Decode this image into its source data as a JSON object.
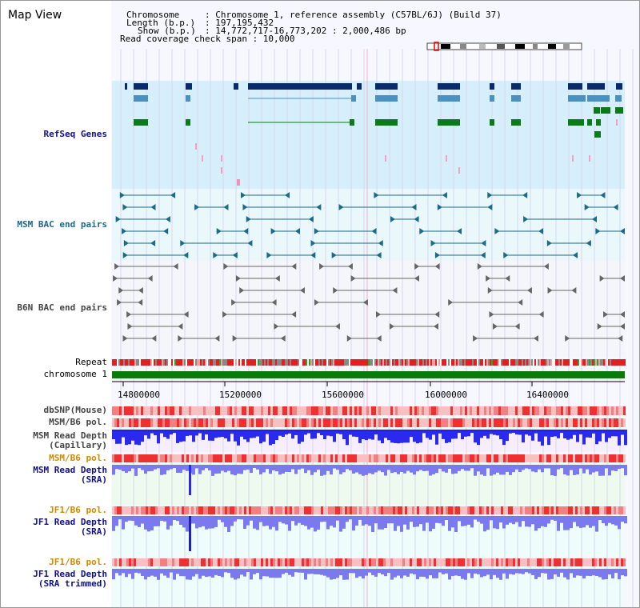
{
  "view_title": "Map View",
  "info": {
    "chromosome_key": "Chromosome",
    "chromosome_value": ": Chromosome 1, reference assembly (C57BL/6J) (Build 37)",
    "length_key": "Length (b.p.)",
    "length_value": ": 197,195,432",
    "show_key": "Show (b.p.)",
    "show_value": ": 14,772,717-16,773,202 : 2,000,486 bp",
    "coverage_label": "Read coverage check span : 10,000"
  },
  "tracks": {
    "refseq": "RefSeq Genes",
    "msm_bac": "MSM BAC end pairs",
    "b6n_bac": "B6N BAC end pairs",
    "repeat": "Repeat",
    "chromosome": "chromosome 1",
    "dbsnp": "dbSNP(Mouse)",
    "msm_b6_pol": "MSM/B6 pol.",
    "msm_read_depth_cap_1": "MSM Read Depth",
    "msm_read_depth_cap_2": "(Capillary)",
    "msm_b6_pol_2": "MSM/B6 pol.",
    "msm_read_depth_sra_1": "MSM Read Depth",
    "msm_read_depth_sra_2": "(SRA)",
    "jf1_b6_pol": "JF1/B6 pol.",
    "jf1_read_depth_sra_1": "JF1 Read Depth",
    "jf1_read_depth_sra_2": "(SRA)",
    "jf1_b6_pol_2": "JF1/B6 pol.",
    "jf1_read_depth_trim_1": "JF1 Read Depth",
    "jf1_read_depth_trim_2": "(SRA trimmed)"
  },
  "axis": {
    "ticks": [
      "14800000",
      "15200000",
      "15600000",
      "16000000",
      "16400000"
    ]
  },
  "colors": {
    "refseq_bg": "#d6effb",
    "gene_dark": "#0a2a6a",
    "gene_mid": "#4a90c0",
    "gene_green": "#0a7a1a",
    "msm_bac": "#1a6a8a",
    "b6n_bac": "#666666",
    "chromosome": "#0a7a0a",
    "depth_blue": "#2a2aee",
    "depth_light": "#7a7aee",
    "pol_red": "#ee3030"
  },
  "ideogram": {
    "highlight": "red"
  }
}
